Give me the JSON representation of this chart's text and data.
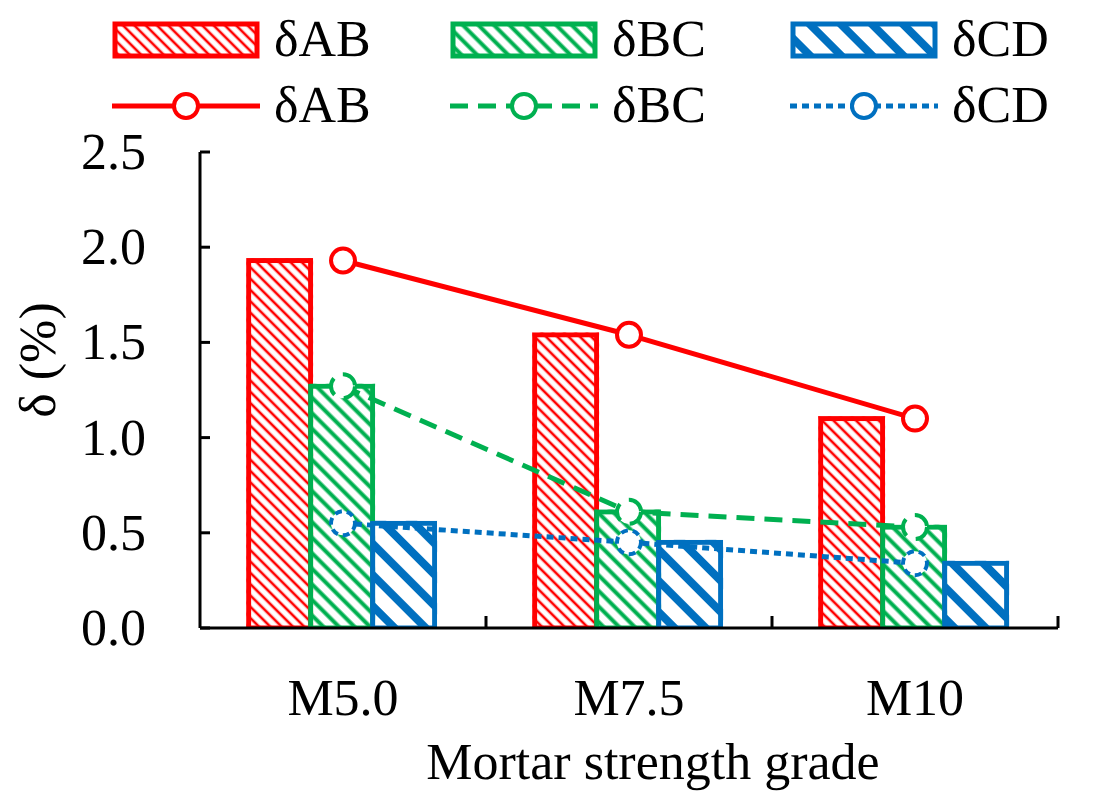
{
  "chart_data": {
    "type": "bar",
    "xlabel": "Mortar strength grade",
    "ylabel": "δ (%)",
    "categories": [
      "M5.0",
      "M7.5",
      "M10"
    ],
    "series": [
      {
        "name": "δAB",
        "color": "#ff0000",
        "values": [
          1.93,
          1.54,
          1.1
        ]
      },
      {
        "name": "δBC",
        "color": "#00b050",
        "values": [
          1.27,
          0.61,
          0.53
        ]
      },
      {
        "name": "δCD",
        "color": "#0070c0",
        "values": [
          0.55,
          0.45,
          0.34
        ]
      },
      {
        "type": "line",
        "name": "δAB",
        "color": "#ff0000",
        "values": [
          1.93,
          1.54,
          1.1
        ],
        "line_style": "solid"
      },
      {
        "type": "line",
        "name": "δBC",
        "color": "#00b050",
        "values": [
          1.27,
          0.61,
          0.53
        ],
        "line_style": "dashed"
      },
      {
        "type": "line",
        "name": "δCD",
        "color": "#0070c0",
        "values": [
          0.55,
          0.45,
          0.34
        ],
        "line_style": "dotted"
      }
    ],
    "ylim": [
      0,
      2.5
    ],
    "yticks": [
      {
        "value": 0,
        "label": "0.0"
      },
      {
        "value": 0.5,
        "label": "0.5"
      },
      {
        "value": 1,
        "label": "1.0"
      },
      {
        "value": 1.5,
        "label": "1.5"
      },
      {
        "value": 2,
        "label": "2.0"
      },
      {
        "value": 2.5,
        "label": "2.5"
      }
    ],
    "marker": "circle",
    "legend": "top",
    "grid": false
  }
}
